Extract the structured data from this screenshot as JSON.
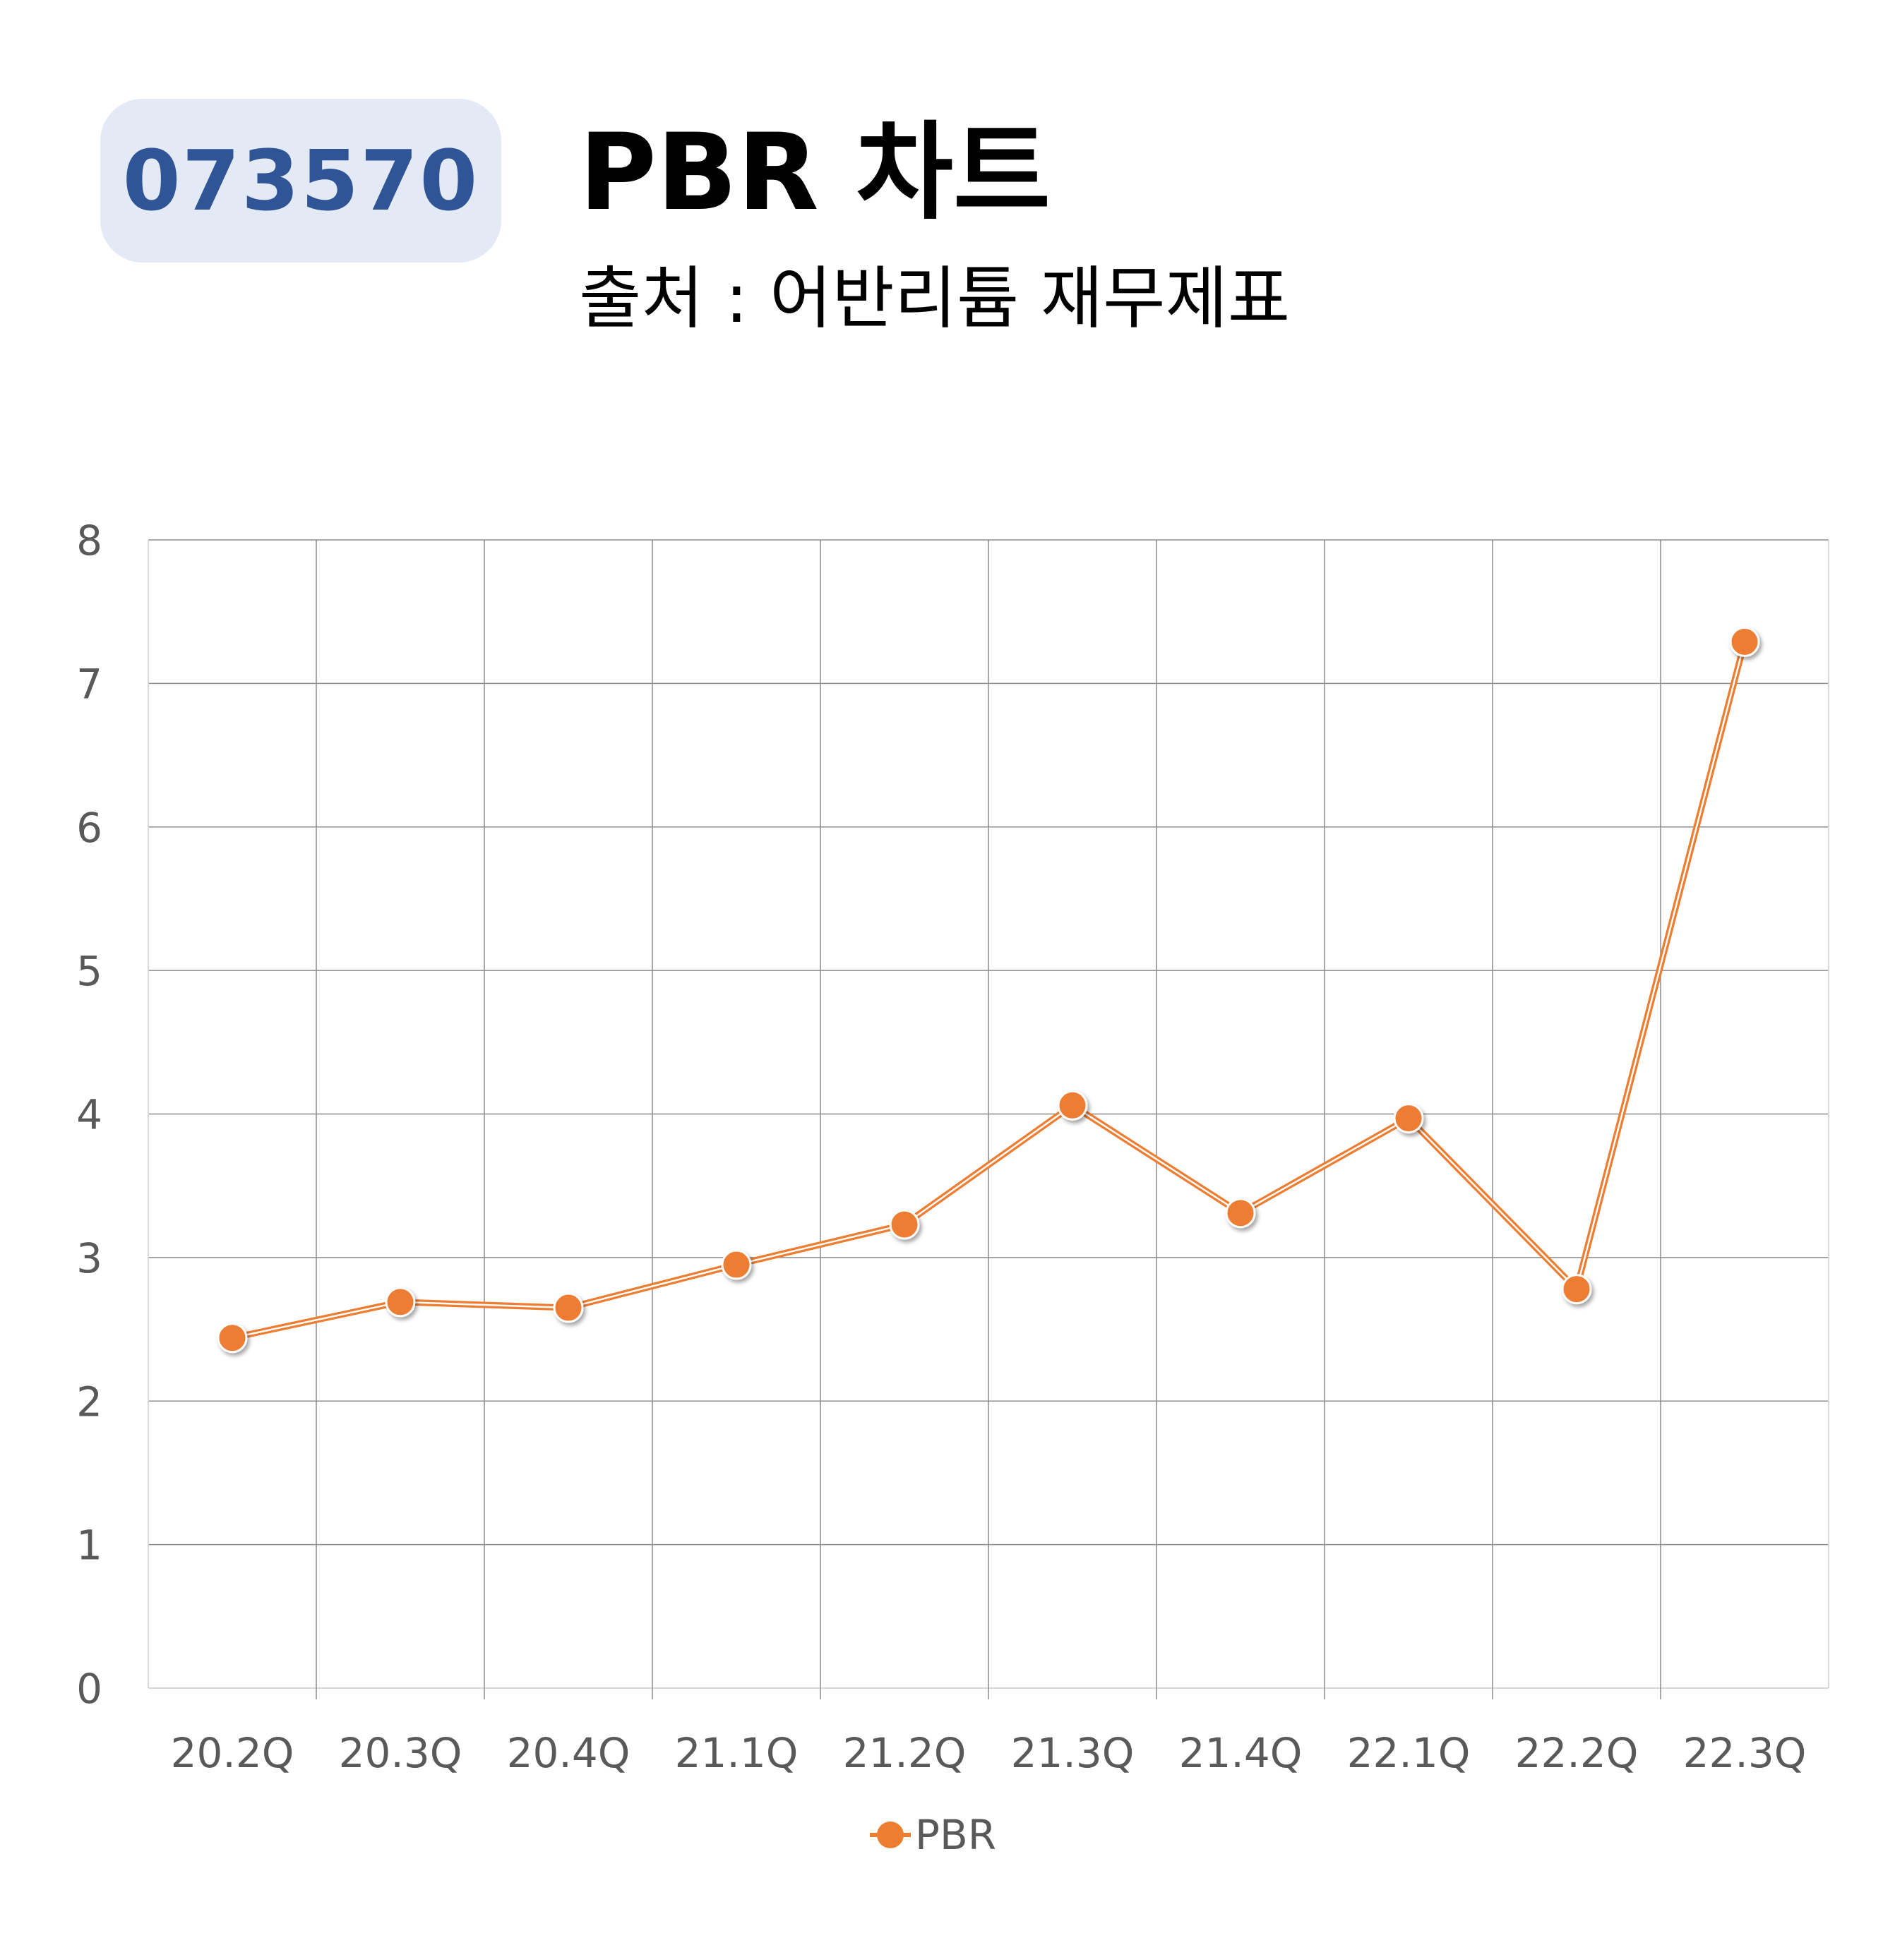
{
  "header": {
    "code": "073570",
    "title": "PBR 차트",
    "subtitle": "출처 : 어반리튬 재무제표"
  },
  "colors": {
    "series": "#ed7d31",
    "badge_bg": "#e3e9f5",
    "badge_text": "#2f5597",
    "grid": "#8c8c8c",
    "tick_text": "#595959"
  },
  "chart_data": {
    "type": "line",
    "categories": [
      "20.2Q",
      "20.3Q",
      "20.4Q",
      "21.1Q",
      "21.2Q",
      "21.3Q",
      "21.4Q",
      "22.1Q",
      "22.2Q",
      "22.3Q"
    ],
    "series": [
      {
        "name": "PBR",
        "values": [
          2.44,
          2.69,
          2.65,
          2.95,
          3.23,
          4.06,
          3.31,
          3.97,
          2.78,
          7.29
        ]
      }
    ],
    "yticks": [
      "0",
      "1",
      "2",
      "3",
      "4",
      "5",
      "6",
      "7",
      "8"
    ],
    "ylim": [
      0,
      8
    ],
    "grid": true,
    "legend": "bottom-center",
    "markers": true
  }
}
